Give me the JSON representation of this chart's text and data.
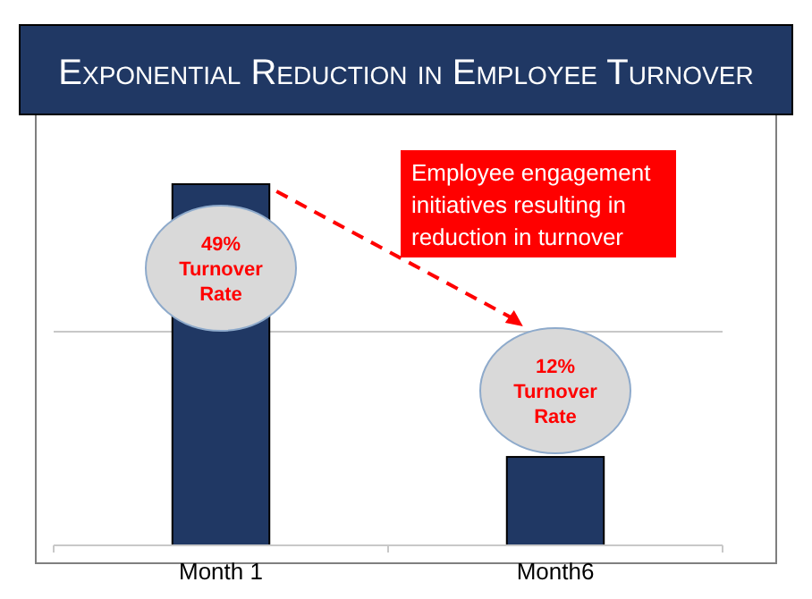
{
  "chart_data": {
    "type": "bar",
    "title": "Exponential Reduction in Employee Turnover",
    "categories": [
      "Month 1",
      "Month6"
    ],
    "values": [
      49,
      12
    ],
    "color": "#203864",
    "value_labels": [
      "49%\nTurnover Rate",
      "12%\nTurnover Rate"
    ],
    "ref_lines": [
      {
        "axis": "y",
        "value": 29,
        "color": "#c8c8c8"
      }
    ],
    "annotations": [
      "Employee engagement initiatives resulting in reduction in turnover"
    ]
  }
}
